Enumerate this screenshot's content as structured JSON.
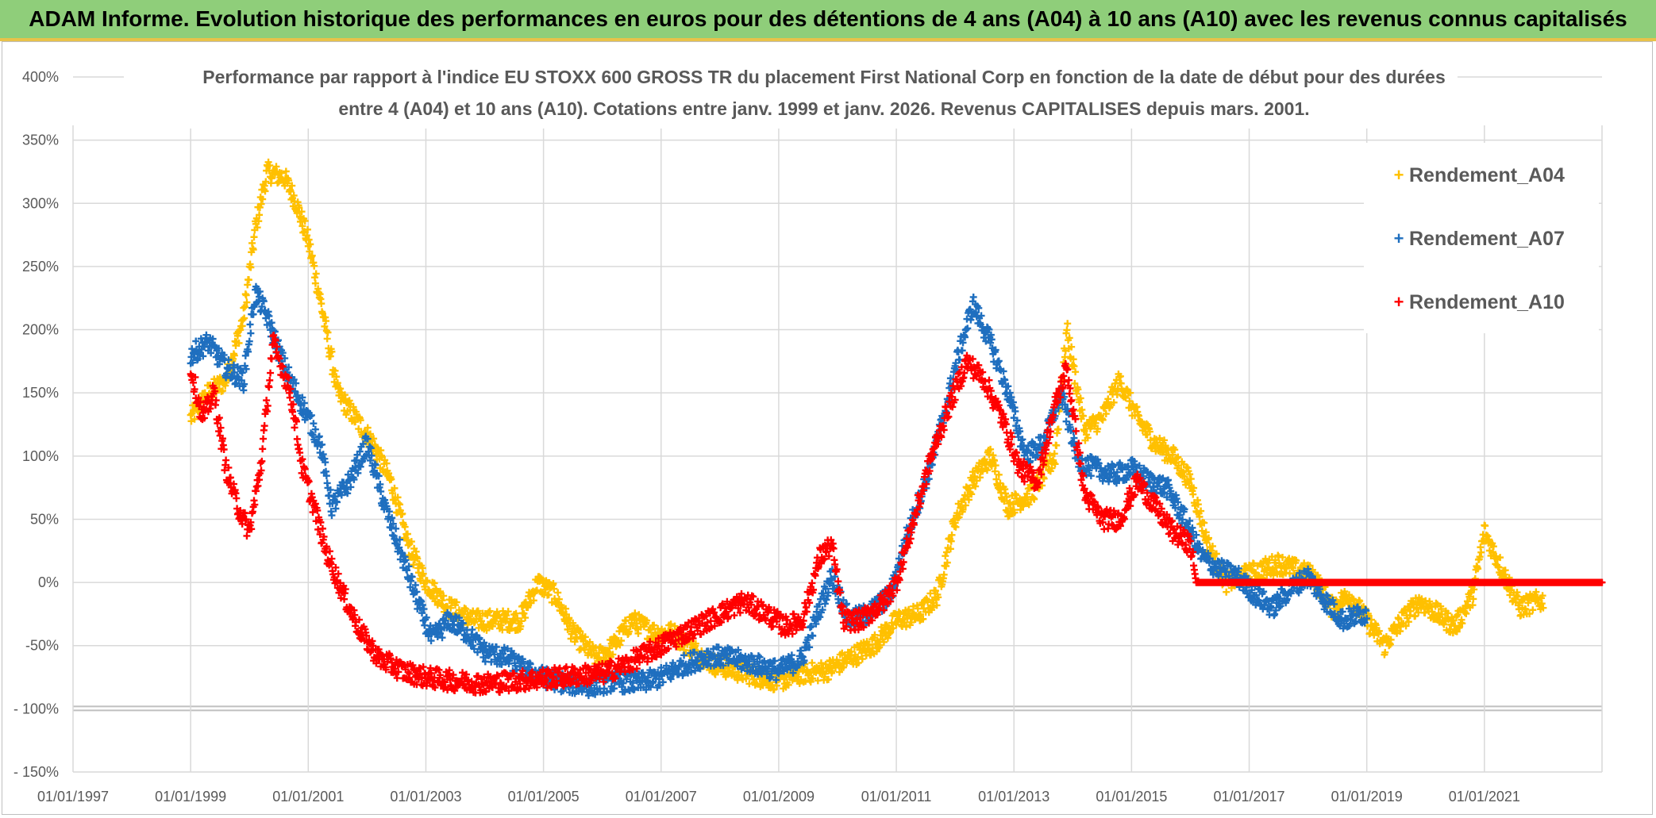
{
  "header": {
    "title": "ADAM Informe. Evolution historique des performances en euros pour des détentions de 4 ans (A04) à 10 ans (A10) avec les revenus connus capitalisés"
  },
  "colors": {
    "A04": "#ffc000",
    "A07": "#1f6fbf",
    "A10": "#ff0000",
    "banner": "#8fce7a"
  },
  "chart_data": {
    "type": "scatter",
    "title_lines": [
      "Performance  par rapport à l'indice EU STOXX 600 GROSS TR  du placement First National Corp en fonction de la date de début pour des durées",
      "entre 4 (A04) et 10 ans (A10). Cotations entre janv. 1999 et janv. 2026. Revenus CAPITALISES depuis mars. 2001."
    ],
    "x_tick_labels": [
      "01/01/1997",
      "01/01/1999",
      "01/01/2001",
      "01/01/2003",
      "01/01/2005",
      "01/01/2007",
      "01/01/2009",
      "01/01/2011",
      "01/01/2013",
      "01/01/2015",
      "01/01/2017",
      "01/01/2019",
      "01/01/2021"
    ],
    "x_range": [
      1997.0,
      2023.0
    ],
    "y_tick_labels": [
      "400%",
      "350%",
      "300%",
      "250%",
      "200%",
      "150%",
      "100%",
      "50%",
      "0%",
      "-50%",
      "- 100%",
      "- 150%"
    ],
    "y_range": [
      -150,
      400
    ],
    "legend": [
      "Rendement_A04",
      "Rendement_A07",
      "Rendement_A10"
    ],
    "series": [
      {
        "name": "Rendement_A04",
        "key": "A04",
        "points": [
          [
            1999.0,
            130
          ],
          [
            1999.3,
            150
          ],
          [
            1999.6,
            160
          ],
          [
            1999.9,
            210
          ],
          [
            2000.1,
            280
          ],
          [
            2000.3,
            325
          ],
          [
            2000.6,
            320
          ],
          [
            2000.8,
            300
          ],
          [
            2001.0,
            270
          ],
          [
            2001.2,
            225
          ],
          [
            2001.5,
            150
          ],
          [
            2001.8,
            130
          ],
          [
            2002.1,
            110
          ],
          [
            2002.4,
            80
          ],
          [
            2002.7,
            30
          ],
          [
            2003.0,
            0
          ],
          [
            2003.4,
            -20
          ],
          [
            2003.8,
            -30
          ],
          [
            2004.2,
            -30
          ],
          [
            2004.6,
            -30
          ],
          [
            2004.9,
            0
          ],
          [
            2005.2,
            -10
          ],
          [
            2005.5,
            -40
          ],
          [
            2005.9,
            -60
          ],
          [
            2006.2,
            -50
          ],
          [
            2006.5,
            -30
          ],
          [
            2006.9,
            -40
          ],
          [
            2007.2,
            -40
          ],
          [
            2007.6,
            -55
          ],
          [
            2007.9,
            -65
          ],
          [
            2008.3,
            -70
          ],
          [
            2008.7,
            -75
          ],
          [
            2009.0,
            -78
          ],
          [
            2009.4,
            -72
          ],
          [
            2009.8,
            -70
          ],
          [
            2010.2,
            -60
          ],
          [
            2010.6,
            -50
          ],
          [
            2011.0,
            -30
          ],
          [
            2011.4,
            -25
          ],
          [
            2011.7,
            -10
          ],
          [
            2012.0,
            50
          ],
          [
            2012.3,
            80
          ],
          [
            2012.6,
            100
          ],
          [
            2012.9,
            60
          ],
          [
            2013.3,
            70
          ],
          [
            2013.7,
            100
          ],
          [
            2013.9,
            200
          ],
          [
            2014.2,
            120
          ],
          [
            2014.5,
            130
          ],
          [
            2014.8,
            160
          ],
          [
            2015.1,
            130
          ],
          [
            2015.4,
            110
          ],
          [
            2015.7,
            100
          ],
          [
            2016.0,
            80
          ],
          [
            2016.3,
            30
          ],
          [
            2016.6,
            0
          ],
          [
            2016.9,
            5
          ],
          [
            2017.2,
            10
          ],
          [
            2017.5,
            15
          ],
          [
            2017.8,
            10
          ],
          [
            2018.1,
            5
          ],
          [
            2018.4,
            -20
          ],
          [
            2018.7,
            -10
          ],
          [
            2019.0,
            -30
          ],
          [
            2019.3,
            -50
          ],
          [
            2019.6,
            -30
          ],
          [
            2019.9,
            -15
          ],
          [
            2020.2,
            -25
          ],
          [
            2020.5,
            -35
          ],
          [
            2020.8,
            -10
          ],
          [
            2021.0,
            40
          ],
          [
            2021.3,
            10
          ],
          [
            2021.6,
            -20
          ],
          [
            2021.9,
            -15
          ],
          [
            2022.0,
            -15
          ]
        ]
      },
      {
        "name": "Rendement_A07",
        "key": "A07",
        "points": [
          [
            1999.0,
            180
          ],
          [
            1999.3,
            190
          ],
          [
            1999.6,
            170
          ],
          [
            1999.9,
            160
          ],
          [
            2000.1,
            230
          ],
          [
            2000.3,
            210
          ],
          [
            2000.6,
            170
          ],
          [
            2000.9,
            140
          ],
          [
            2001.2,
            110
          ],
          [
            2001.4,
            60
          ],
          [
            2001.7,
            80
          ],
          [
            2002.0,
            110
          ],
          [
            2002.3,
            60
          ],
          [
            2002.6,
            20
          ],
          [
            2002.9,
            -20
          ],
          [
            2003.1,
            -45
          ],
          [
            2003.4,
            -30
          ],
          [
            2003.7,
            -40
          ],
          [
            2004.0,
            -55
          ],
          [
            2004.4,
            -60
          ],
          [
            2004.7,
            -70
          ],
          [
            2005.0,
            -75
          ],
          [
            2005.4,
            -80
          ],
          [
            2005.8,
            -82
          ],
          [
            2006.2,
            -78
          ],
          [
            2006.6,
            -80
          ],
          [
            2007.0,
            -75
          ],
          [
            2007.4,
            -65
          ],
          [
            2007.8,
            -58
          ],
          [
            2008.2,
            -60
          ],
          [
            2008.6,
            -65
          ],
          [
            2009.0,
            -70
          ],
          [
            2009.4,
            -60
          ],
          [
            2009.7,
            -20
          ],
          [
            2009.9,
            5
          ],
          [
            2010.2,
            -30
          ],
          [
            2010.5,
            -25
          ],
          [
            2010.9,
            -10
          ],
          [
            2011.2,
            40
          ],
          [
            2011.5,
            80
          ],
          [
            2011.8,
            130
          ],
          [
            2012.0,
            170
          ],
          [
            2012.3,
            220
          ],
          [
            2012.6,
            190
          ],
          [
            2012.9,
            150
          ],
          [
            2013.2,
            100
          ],
          [
            2013.5,
            110
          ],
          [
            2013.8,
            150
          ],
          [
            2014.1,
            95
          ],
          [
            2014.4,
            90
          ],
          [
            2014.7,
            85
          ],
          [
            2015.0,
            90
          ],
          [
            2015.3,
            80
          ],
          [
            2015.6,
            75
          ],
          [
            2015.9,
            50
          ],
          [
            2016.2,
            20
          ],
          [
            2016.5,
            10
          ],
          [
            2016.8,
            5
          ],
          [
            2017.1,
            -10
          ],
          [
            2017.4,
            -20
          ],
          [
            2017.7,
            -5
          ],
          [
            2018.0,
            5
          ],
          [
            2018.3,
            -15
          ],
          [
            2018.6,
            -30
          ],
          [
            2018.9,
            -25
          ],
          [
            2019.0,
            -25
          ]
        ]
      },
      {
        "name": "Rendement_A10",
        "key": "A10",
        "points": [
          [
            1999.0,
            170
          ],
          [
            1999.2,
            130
          ],
          [
            1999.4,
            150
          ],
          [
            1999.6,
            90
          ],
          [
            1999.8,
            60
          ],
          [
            2000.0,
            40
          ],
          [
            2000.2,
            95
          ],
          [
            2000.4,
            190
          ],
          [
            2000.7,
            150
          ],
          [
            2000.9,
            90
          ],
          [
            2001.1,
            60
          ],
          [
            2001.3,
            25
          ],
          [
            2001.6,
            -10
          ],
          [
            2001.9,
            -40
          ],
          [
            2002.2,
            -60
          ],
          [
            2002.6,
            -70
          ],
          [
            2003.0,
            -75
          ],
          [
            2003.5,
            -78
          ],
          [
            2004.0,
            -80
          ],
          [
            2004.5,
            -78
          ],
          [
            2005.0,
            -76
          ],
          [
            2005.5,
            -74
          ],
          [
            2006.0,
            -72
          ],
          [
            2006.4,
            -65
          ],
          [
            2006.8,
            -55
          ],
          [
            2007.2,
            -45
          ],
          [
            2007.6,
            -35
          ],
          [
            2008.0,
            -25
          ],
          [
            2008.4,
            -15
          ],
          [
            2008.8,
            -25
          ],
          [
            2009.1,
            -35
          ],
          [
            2009.4,
            -30
          ],
          [
            2009.7,
            20
          ],
          [
            2009.9,
            30
          ],
          [
            2010.1,
            -30
          ],
          [
            2010.4,
            -30
          ],
          [
            2010.8,
            -15
          ],
          [
            2011.0,
            0
          ],
          [
            2011.3,
            50
          ],
          [
            2011.6,
            100
          ],
          [
            2011.9,
            140
          ],
          [
            2012.2,
            175
          ],
          [
            2012.5,
            160
          ],
          [
            2012.8,
            130
          ],
          [
            2013.1,
            90
          ],
          [
            2013.4,
            80
          ],
          [
            2013.7,
            140
          ],
          [
            2013.9,
            170
          ],
          [
            2014.2,
            70
          ],
          [
            2014.5,
            50
          ],
          [
            2014.8,
            50
          ],
          [
            2015.1,
            80
          ],
          [
            2015.4,
            60
          ],
          [
            2015.7,
            40
          ],
          [
            2016.0,
            30
          ],
          [
            2016.1,
            0
          ],
          [
            2016.5,
            0
          ],
          [
            2017.0,
            0
          ],
          [
            2018.0,
            0
          ],
          [
            2019.0,
            0
          ],
          [
            2020.0,
            0
          ],
          [
            2021.0,
            0
          ],
          [
            2022.0,
            0
          ],
          [
            2023.0,
            0
          ]
        ]
      }
    ]
  }
}
